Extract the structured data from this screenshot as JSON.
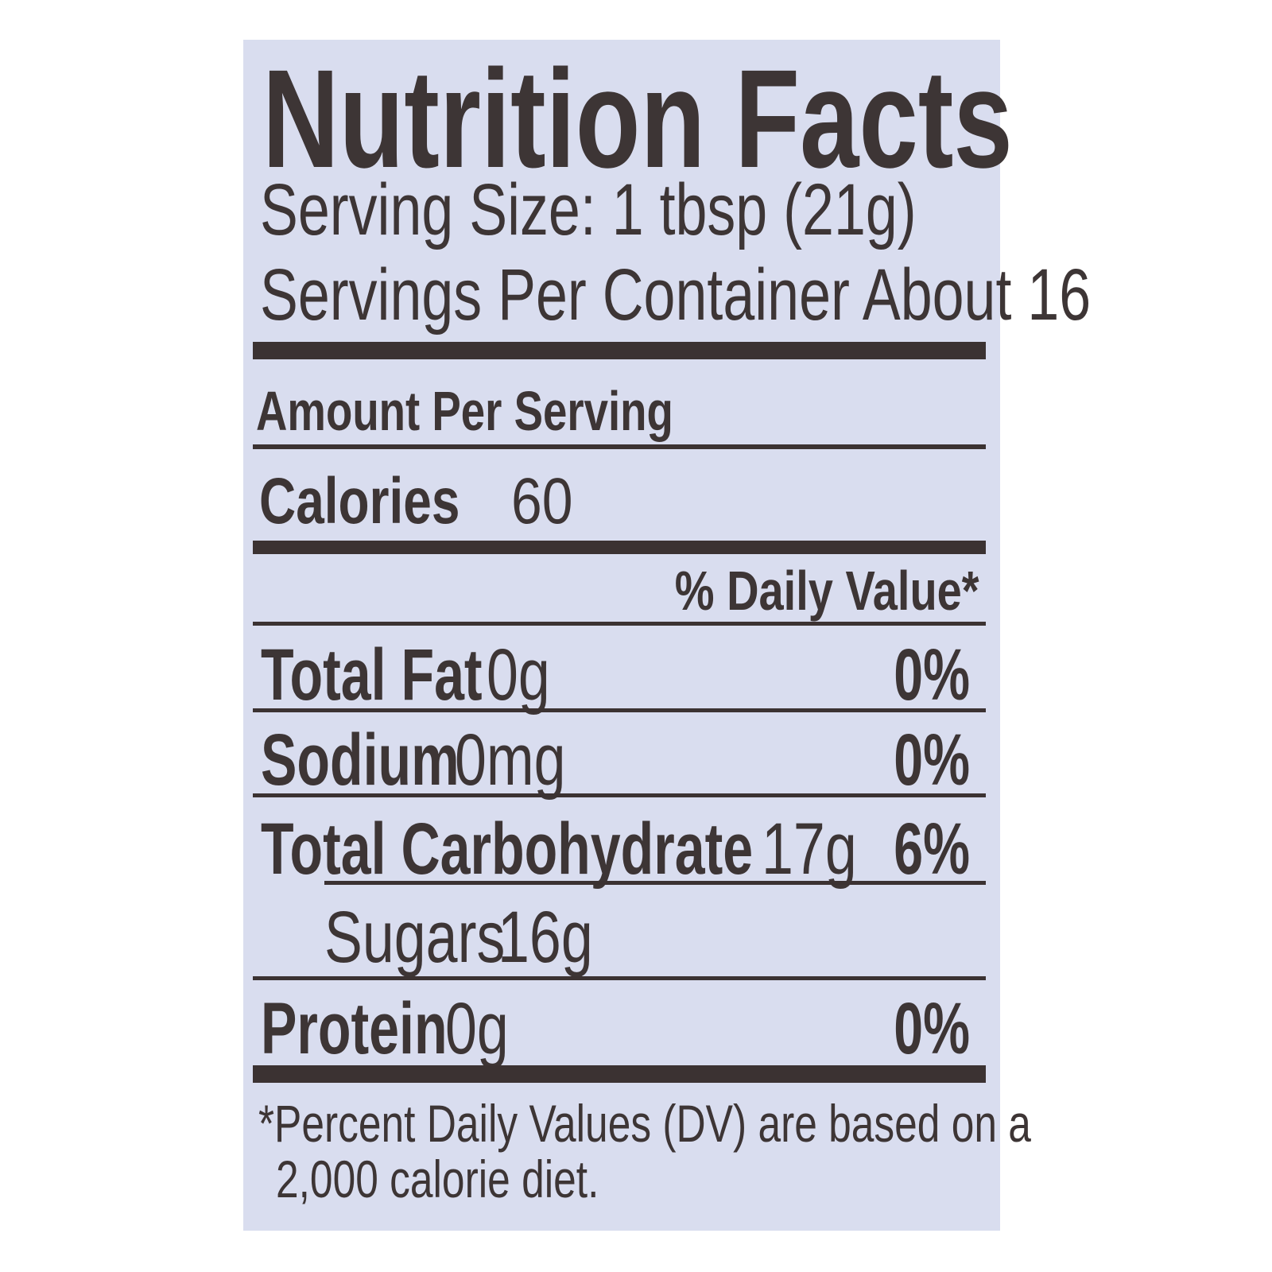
{
  "title": "Nutrition Facts",
  "serving_size": "Serving Size: 1 tbsp (21g)",
  "servings_per_container": "Servings Per Container About 16",
  "amount_per_serving": "Amount Per Serving",
  "calories": {
    "label": "Calories",
    "value": "60"
  },
  "daily_value_header": "% Daily Value*",
  "nutrients": [
    {
      "name": "Total Fat",
      "amount": "0g",
      "dv": "0%"
    },
    {
      "name": "Sodium",
      "amount": "0mg",
      "dv": "0%"
    },
    {
      "name": "Total Carbohydrate",
      "amount": "17g",
      "dv": "6%"
    },
    {
      "name": "Sugars",
      "amount": "16g",
      "dv": ""
    },
    {
      "name": "Protein",
      "amount": "0g",
      "dv": "0%"
    }
  ],
  "footnote_line1": "*Percent Daily Values (DV) are based on a",
  "footnote_line2": "2,000 calorie diet.",
  "colors": {
    "background": "#d9ddef",
    "ink": "#3d3535"
  }
}
